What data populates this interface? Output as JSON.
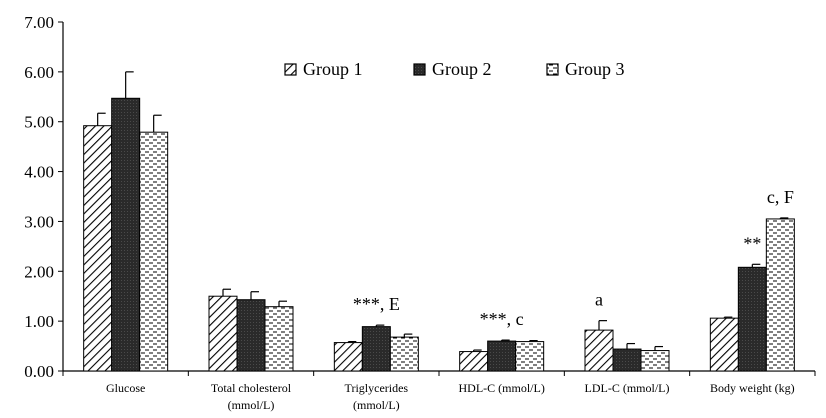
{
  "chart_data": {
    "type": "bar",
    "ylim": [
      0,
      7
    ],
    "y_ticks": [
      "0.00",
      "1.00",
      "2.00",
      "3.00",
      "4.00",
      "5.00",
      "6.00",
      "7.00"
    ],
    "grid": false,
    "legend_position": "top-center",
    "categories": [
      [
        "Glucose"
      ],
      [
        "Total cholesterol",
        "(mmol/L)"
      ],
      [
        "Triglycerides",
        "(mmol/L)"
      ],
      [
        "HDL-C (mmol/L)"
      ],
      [
        "LDL-C (mmol/L)"
      ],
      [
        "Body weight (kg)"
      ]
    ],
    "series": [
      {
        "name": "Group 1",
        "pattern": "diagonal-hatch",
        "values": [
          4.92,
          1.5,
          0.57,
          0.39,
          0.82,
          1.06
        ],
        "errors": [
          0.25,
          0.14,
          0.02,
          0.03,
          0.19,
          0.02
        ]
      },
      {
        "name": "Group 2",
        "pattern": "solid-dark",
        "values": [
          5.47,
          1.43,
          0.89,
          0.6,
          0.44,
          2.08
        ],
        "errors": [
          0.53,
          0.16,
          0.03,
          0.02,
          0.11,
          0.06
        ]
      },
      {
        "name": "Group 3",
        "pattern": "dashed",
        "values": [
          4.79,
          1.29,
          0.68,
          0.59,
          0.41,
          3.05
        ],
        "errors": [
          0.34,
          0.11,
          0.06,
          0.02,
          0.08,
          0.02
        ]
      }
    ],
    "annotations": [
      {
        "category": 2,
        "series": 1,
        "text": "***, E"
      },
      {
        "category": 3,
        "series": 1,
        "text": "***, c"
      },
      {
        "category": 4,
        "series": 0,
        "text": "a"
      },
      {
        "category": 5,
        "series": 1,
        "text": "**"
      },
      {
        "category": 5,
        "series": 2,
        "text": "c, F"
      }
    ],
    "colors": {
      "axis": "#000000",
      "dark_fill": "#333333",
      "light_fill": "#ffffff"
    }
  }
}
